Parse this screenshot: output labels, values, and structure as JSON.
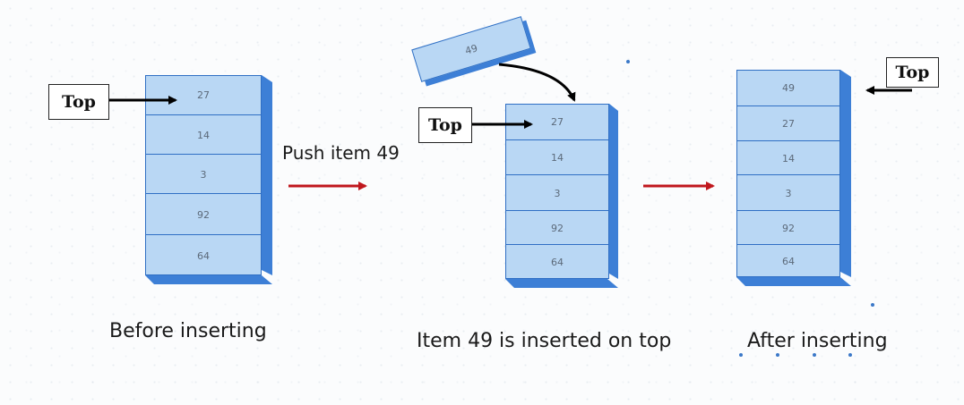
{
  "stack_before": {
    "top_label": "Top",
    "items": [
      "27",
      "14",
      "3",
      "92",
      "64"
    ],
    "caption": "Before inserting"
  },
  "push_operation": {
    "label": "Push item 49",
    "new_item": "49"
  },
  "stack_inserting": {
    "top_label": "Top",
    "items": [
      "27",
      "14",
      "3",
      "92",
      "64"
    ],
    "caption": "Item 49 is inserted on top"
  },
  "stack_after": {
    "top_label": "Top",
    "items": [
      "49",
      "27",
      "14",
      "3",
      "92",
      "64"
    ],
    "caption": "After inserting"
  },
  "colors": {
    "cell_fill": "#b9d7f4",
    "cell_border": "#2f6fc4",
    "stack_side": "#3d7fd6",
    "flow_arrow": "#c0171d",
    "pointer_arrow": "#000000"
  }
}
